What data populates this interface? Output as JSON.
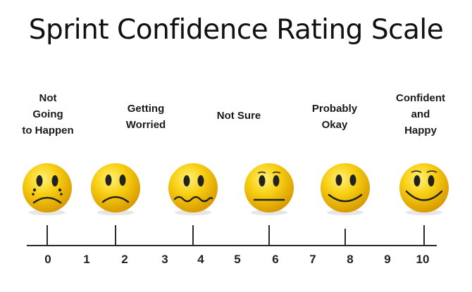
{
  "title": "Sprint Confidence Rating Scale",
  "labels": [
    {
      "lines": [
        "Not",
        "Going",
        "to Happen"
      ]
    },
    {
      "lines": [
        "Getting",
        "Worried"
      ]
    },
    {
      "lines": [
        "Not Sure"
      ]
    },
    {
      "lines": [
        "Probably",
        "Okay"
      ]
    },
    {
      "lines": [
        "Confident",
        "and",
        "Happy"
      ]
    }
  ],
  "faces": [
    {
      "icon": "crying-face-icon",
      "tick_value": "0"
    },
    {
      "icon": "sad-face-icon",
      "tick_value": "2"
    },
    {
      "icon": "worried-face-icon",
      "tick_value": "4"
    },
    {
      "icon": "neutral-face-icon",
      "tick_value": "6"
    },
    {
      "icon": "smiling-face-icon",
      "tick_value": "8"
    },
    {
      "icon": "happy-face-icon",
      "tick_value": "10"
    }
  ],
  "scale": [
    "0",
    "1",
    "2",
    "3",
    "4",
    "5",
    "6",
    "7",
    "8",
    "9",
    "10"
  ],
  "colors": {
    "face": "#f5c400",
    "face_highlight": "#fff06a",
    "face_shadow": "#d99a00",
    "line": "#2a2a2a"
  }
}
